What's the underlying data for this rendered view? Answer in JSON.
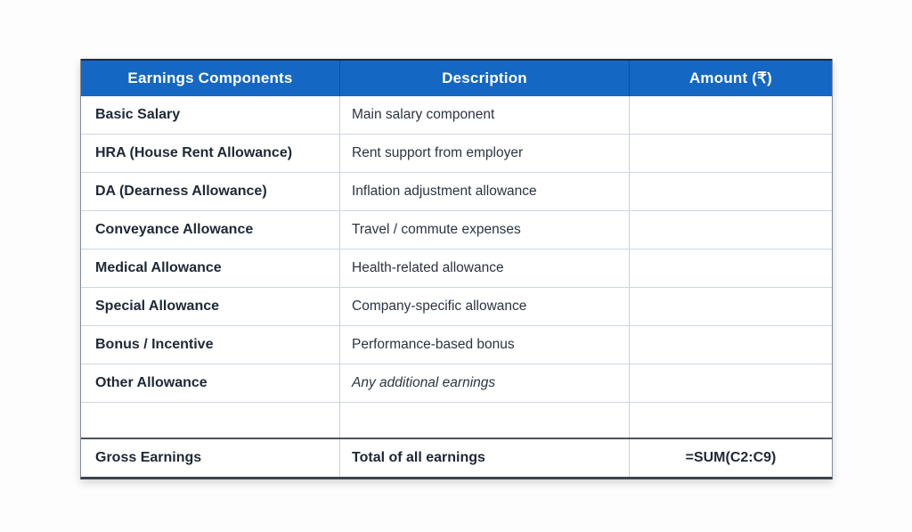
{
  "colors": {
    "header_bg": "#1467c2",
    "header_text": "#ffffff",
    "body_text": "#2b3442",
    "component_text": "#1e2836",
    "grid_line": "#cfd6de",
    "outer_border": "#848c98",
    "heavy_border": "#3d444f"
  },
  "table": {
    "headers": [
      "Earnings Components",
      "Description",
      "Amount (₹)"
    ],
    "rows": [
      {
        "component": "Basic Salary",
        "description": "Main salary component",
        "amount": ""
      },
      {
        "component": "HRA (House Rent Allowance)",
        "description": "Rent support from employer",
        "amount": ""
      },
      {
        "component": "DA (Dearness Allowance)",
        "description": "Inflation adjustment allowance",
        "amount": ""
      },
      {
        "component": "Conveyance Allowance",
        "description": "Travel / commute expenses",
        "amount": ""
      },
      {
        "component": "Medical Allowance",
        "description": "Health-related allowance",
        "amount": ""
      },
      {
        "component": "Special Allowance",
        "description": "Company-specific allowance",
        "amount": ""
      },
      {
        "component": "Bonus / Incentive",
        "description": "Performance-based bonus",
        "amount": ""
      },
      {
        "component": "Other Allowance",
        "description": "Any additional earnings",
        "amount": ""
      }
    ],
    "empty_row": {
      "component": "",
      "description": "",
      "amount": ""
    },
    "total_row": {
      "component": "Gross Earnings",
      "description": "Total of all earnings",
      "amount": "=SUM(C2:C9)"
    }
  }
}
